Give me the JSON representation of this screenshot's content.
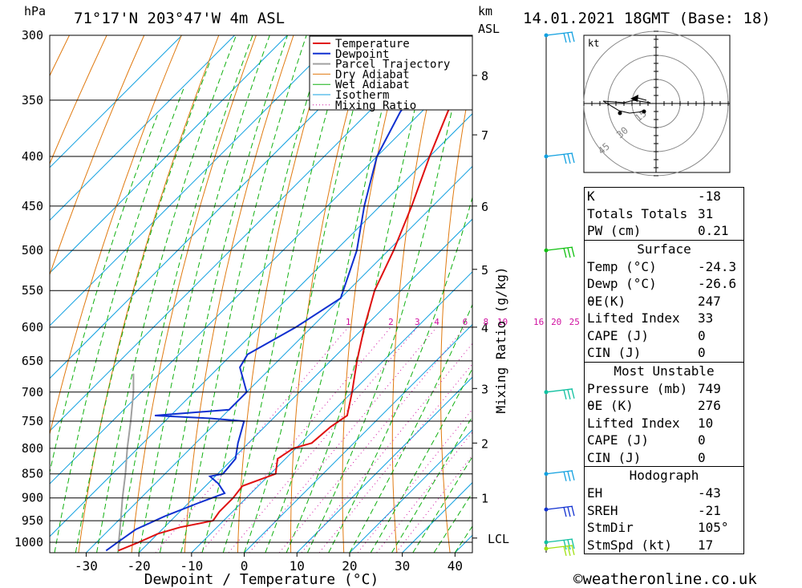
{
  "header": {
    "location": "71°17'N 203°47'W 4m ASL",
    "datetime": "14.01.2021 18GMT (Base: 18)",
    "hpa_label": "hPa",
    "km_label": "km",
    "asl_label": "ASL"
  },
  "chart_data": {
    "type": "skew-t",
    "xlabel": "Dewpoint / Temperature (°C)",
    "ylabel_right": "Mixing Ratio (g/kg)",
    "x_ticks": [
      -30,
      -20,
      -10,
      0,
      10,
      20,
      30,
      40
    ],
    "x_range": [
      -40,
      40
    ],
    "pressure_ticks": [
      300,
      350,
      400,
      450,
      500,
      550,
      600,
      650,
      700,
      750,
      800,
      850,
      900,
      950,
      1000
    ],
    "pressure_range": [
      300,
      1025
    ],
    "km_ticks": [
      {
        "label": "1",
        "p": 900
      },
      {
        "label": "2",
        "p": 790
      },
      {
        "label": "3",
        "p": 694
      },
      {
        "label": "4",
        "p": 600
      },
      {
        "label": "5",
        "p": 523
      },
      {
        "label": "6",
        "p": 450
      },
      {
        "label": "7",
        "p": 380
      },
      {
        "label": "8",
        "p": 330
      }
    ],
    "lcl": {
      "label": "LCL",
      "p": 990
    },
    "mixing_ratio_labels": [
      "1",
      "2",
      "3",
      "4",
      "6",
      "8",
      "10",
      "16",
      "20",
      "25"
    ],
    "mixing_ratio_values": [
      1,
      2,
      3,
      4,
      6,
      8,
      10,
      16,
      20,
      25
    ],
    "legend": [
      "Temperature",
      "Dewpoint",
      "Parcel Trajectory",
      "Dry Adiabat",
      "Wet Adiabat",
      "Isotherm",
      "Mixing Ratio"
    ],
    "colors": {
      "temperature": "#e01010",
      "dewpoint": "#1030d0",
      "parcel": "#a0a0a0",
      "dry_adiabat": "#e07a10",
      "wet_adiabat": "#10b010",
      "isotherm": "#10a0e0",
      "mixing_ratio": "#d010a0"
    },
    "temperature": [
      {
        "p": 1020,
        "t": -24.3
      },
      {
        "p": 1000,
        "t": -22.0
      },
      {
        "p": 980,
        "t": -20.0
      },
      {
        "p": 965,
        "t": -17.0
      },
      {
        "p": 950,
        "t": -12.0
      },
      {
        "p": 930,
        "t": -12.5
      },
      {
        "p": 900,
        "t": -12.5
      },
      {
        "p": 875,
        "t": -13.0
      },
      {
        "p": 850,
        "t": -9.0
      },
      {
        "p": 820,
        "t": -11.5
      },
      {
        "p": 800,
        "t": -10.5
      },
      {
        "p": 790,
        "t": -8.0
      },
      {
        "p": 760,
        "t": -7.5
      },
      {
        "p": 740,
        "t": -6.5
      },
      {
        "p": 700,
        "t": -10.0
      },
      {
        "p": 650,
        "t": -15.0
      },
      {
        "p": 600,
        "t": -20.0
      },
      {
        "p": 550,
        "t": -25.0
      },
      {
        "p": 500,
        "t": -29.0
      },
      {
        "p": 450,
        "t": -34.0
      },
      {
        "p": 400,
        "t": -40.0
      },
      {
        "p": 360,
        "t": -45.0
      },
      {
        "p": 340,
        "t": -47.5
      },
      {
        "p": 330,
        "t": -49.0
      },
      {
        "p": 300,
        "t": -52.0
      }
    ],
    "dewpoint": [
      {
        "p": 1020,
        "t": -26.6
      },
      {
        "p": 1000,
        "t": -26.0
      },
      {
        "p": 970,
        "t": -25.0
      },
      {
        "p": 940,
        "t": -22.0
      },
      {
        "p": 910,
        "t": -18.0
      },
      {
        "p": 890,
        "t": -15.0
      },
      {
        "p": 870,
        "t": -18.0
      },
      {
        "p": 855,
        "t": -21.0
      },
      {
        "p": 850,
        "t": -19.0
      },
      {
        "p": 820,
        "t": -19.5
      },
      {
        "p": 790,
        "t": -22.0
      },
      {
        "p": 750,
        "t": -25.0
      },
      {
        "p": 745,
        "t": -32.0
      },
      {
        "p": 740,
        "t": -43.0
      },
      {
        "p": 730,
        "t": -30.0
      },
      {
        "p": 700,
        "t": -30.0
      },
      {
        "p": 660,
        "t": -36.0
      },
      {
        "p": 640,
        "t": -37.0
      },
      {
        "p": 600,
        "t": -33.0
      },
      {
        "p": 560,
        "t": -30.0
      },
      {
        "p": 500,
        "t": -36.0
      },
      {
        "p": 450,
        "t": -43.0
      },
      {
        "p": 400,
        "t": -50.0
      },
      {
        "p": 360,
        "t": -54.0
      },
      {
        "p": 345,
        "t": -55.0
      },
      {
        "p": 335,
        "t": -54.0
      },
      {
        "p": 315,
        "t": -63.0
      },
      {
        "p": 300,
        "t": -63.0
      }
    ],
    "parcel": [
      {
        "p": 1020,
        "t": -24.3
      },
      {
        "p": 1000,
        "t": -25.8
      },
      {
        "p": 950,
        "t": -29.5
      },
      {
        "p": 900,
        "t": -33.5
      },
      {
        "p": 850,
        "t": -37.5
      },
      {
        "p": 800,
        "t": -42.0
      },
      {
        "p": 750,
        "t": -46.5
      },
      {
        "p": 700,
        "t": -51.5
      },
      {
        "p": 670,
        "t": -55.0
      }
    ]
  },
  "hodograph": {
    "unit": "kt",
    "ring_labels": [
      "15",
      "30",
      "45"
    ]
  },
  "indices": {
    "rows": [
      {
        "label": "K",
        "value": "-18"
      },
      {
        "label": "Totals Totals",
        "value": "31"
      },
      {
        "label": "PW (cm)",
        "value": "0.21"
      }
    ]
  },
  "surface": {
    "title": "Surface",
    "rows": [
      {
        "label": "Temp (°C)",
        "value": "-24.3"
      },
      {
        "label": "Dewp (°C)",
        "value": "-26.6"
      },
      {
        "label": "θE(K)",
        "value": "247"
      },
      {
        "label": "Lifted Index",
        "value": "33"
      },
      {
        "label": "CAPE (J)",
        "value": "0"
      },
      {
        "label": "CIN (J)",
        "value": "0"
      }
    ]
  },
  "most_unstable": {
    "title": "Most Unstable",
    "rows": [
      {
        "label": "Pressure (mb)",
        "value": "749"
      },
      {
        "label": "θE (K)",
        "value": "276"
      },
      {
        "label": "Lifted Index",
        "value": "10"
      },
      {
        "label": "CAPE (J)",
        "value": "0"
      },
      {
        "label": "CIN (J)",
        "value": "0"
      }
    ]
  },
  "hodograph_table": {
    "title": "Hodograph",
    "rows": [
      {
        "label": "EH",
        "value": "-43"
      },
      {
        "label": "SREH",
        "value": "-21"
      },
      {
        "label": "StmDir",
        "value": "105°"
      },
      {
        "label": "StmSpd (kt)",
        "value": "17"
      }
    ]
  },
  "footer": {
    "copyright": "©weatheronline.co.uk"
  }
}
